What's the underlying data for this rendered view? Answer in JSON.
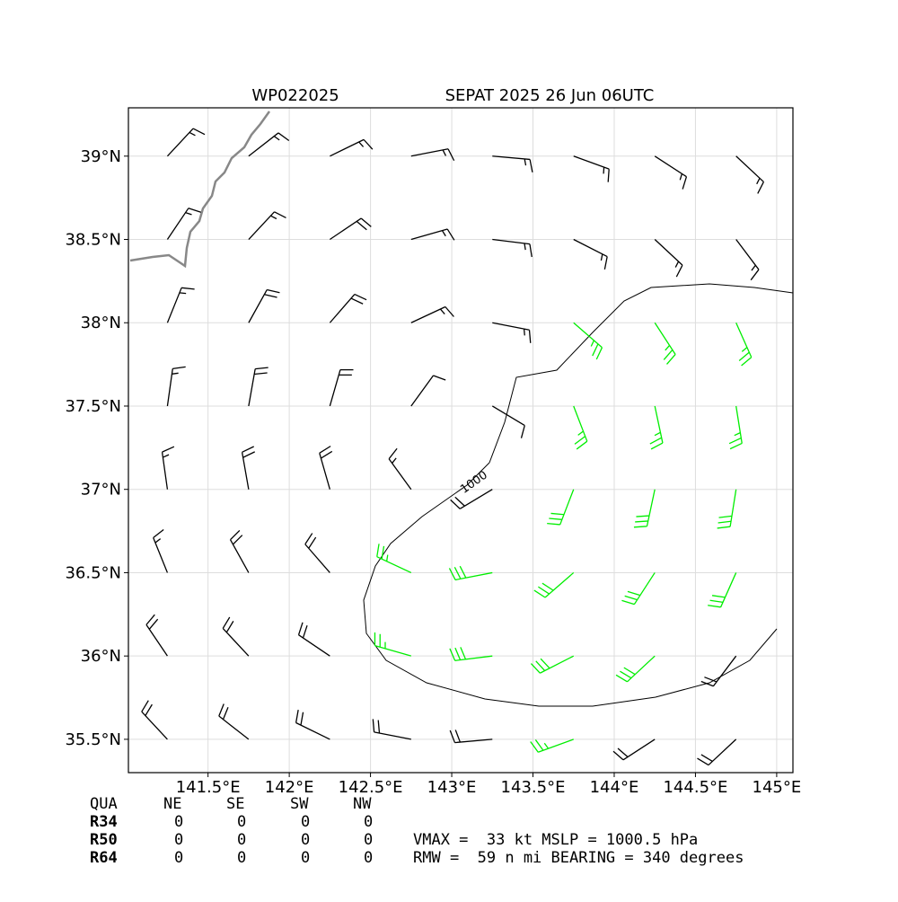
{
  "chart_data": {
    "type": "barbs",
    "title_left": "WP022025",
    "title_right": "SEPAT 2025 26 Jun 06UTC",
    "xlim": [
      141.01,
      145.1
    ],
    "ylim": [
      35.3,
      39.29
    ],
    "xticks": [
      {
        "value": 141.5,
        "label": "141.5°E"
      },
      {
        "value": 142,
        "label": "142°E"
      },
      {
        "value": 142.5,
        "label": "142.5°E"
      },
      {
        "value": 143,
        "label": "143°E"
      },
      {
        "value": 143.5,
        "label": "143.5°E"
      },
      {
        "value": 144,
        "label": "144°E"
      },
      {
        "value": 144.5,
        "label": "144.5°E"
      },
      {
        "value": 145,
        "label": "145°E"
      }
    ],
    "yticks": [
      {
        "value": 35.5,
        "label": "35.5°N"
      },
      {
        "value": 36,
        "label": "36°N"
      },
      {
        "value": 36.5,
        "label": "36.5°N"
      },
      {
        "value": 37,
        "label": "37°N"
      },
      {
        "value": 37.5,
        "label": "37.5°N"
      },
      {
        "value": 38,
        "label": "38°N"
      },
      {
        "value": 38.5,
        "label": "38.5°N"
      },
      {
        "value": 39,
        "label": "39°N"
      }
    ],
    "grid": true,
    "barbs": {
      "lon": [
        141.25,
        141.75,
        142.25,
        142.75,
        143.25,
        143.75,
        144.25,
        144.75
      ],
      "lat": [
        39.0,
        38.5,
        38.0,
        37.5,
        37.0,
        36.5,
        36.0,
        35.5
      ],
      "direction": [
        [
          43,
          52,
          64,
          79,
          95,
          110,
          123,
          133
        ],
        [
          34,
          43,
          56,
          74,
          97,
          117,
          133,
          143
        ],
        [
          22,
          29,
          41,
          65,
          101,
          131,
          147,
          156
        ],
        [
          8,
          10,
          16,
          36,
          121,
          159,
          168,
          171
        ],
        [
          352,
          350,
          344,
          324,
          239,
          201,
          192,
          189
        ],
        [
          338,
          331,
          319,
          295,
          259,
          229,
          213,
          204
        ],
        [
          326,
          317,
          304,
          286,
          263,
          243,
          227,
          217
        ],
        [
          317,
          308,
          296,
          281,
          265,
          250,
          237,
          227
        ]
      ],
      "speed": [
        [
          15,
          15,
          15,
          15,
          15,
          15,
          15,
          15
        ],
        [
          15,
          15,
          20,
          15,
          15,
          15,
          15,
          15
        ],
        [
          15,
          20,
          20,
          15,
          15,
          25,
          25,
          25
        ],
        [
          15,
          20,
          20,
          10,
          10,
          25,
          25,
          25
        ],
        [
          15,
          20,
          20,
          15,
          20,
          30,
          30,
          30
        ],
        [
          15,
          20,
          20,
          25,
          30,
          30,
          30,
          30
        ],
        [
          20,
          20,
          20,
          25,
          30,
          30,
          30,
          20
        ],
        [
          20,
          20,
          20,
          20,
          20,
          25,
          20,
          20
        ]
      ],
      "color": "#000000",
      "strong_color": "#00ee00",
      "strong_min_kt": 25
    },
    "contour_label": "1000"
  },
  "quadrant_table": {
    "header": [
      "QUA",
      "NE",
      "SE",
      "SW",
      "NW"
    ],
    "rows": [
      [
        "R34",
        "0",
        "0",
        "0",
        "0"
      ],
      [
        "R50",
        "0",
        "0",
        "0",
        "0"
      ],
      [
        "R64",
        "0",
        "0",
        "0",
        "0"
      ]
    ]
  },
  "info": [
    "VMAX =  33 kt MSLP = 1000.5 hPa",
    "RMW =  59 n mi BEARING = 340 degrees"
  ]
}
